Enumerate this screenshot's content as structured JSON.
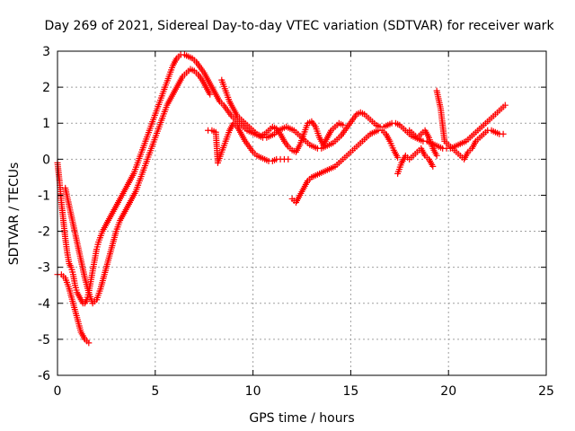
{
  "chart_data": {
    "type": "scatter",
    "title": "Day 269 of 2021, Sidereal Day-to-day VTEC variation (SDTVAR) for receiver wark",
    "xlabel": "GPS time / hours",
    "ylabel": "SDTVAR / TECUs",
    "xlim": [
      0,
      25
    ],
    "ylim": [
      -6,
      3
    ],
    "xticks": [
      0,
      5,
      10,
      15,
      20,
      25
    ],
    "yticks": [
      -6,
      -5,
      -4,
      -3,
      -2,
      -1,
      0,
      1,
      2,
      3
    ],
    "grid": true,
    "legend": "none",
    "marker": "+",
    "color": "#ff0000",
    "series": [
      {
        "x": [
          0.0,
          0.1,
          0.2,
          0.3,
          0.4,
          0.5,
          0.6,
          0.7,
          0.8,
          0.9,
          1.0,
          1.1,
          1.2,
          1.3,
          1.4,
          1.5,
          1.6,
          1.7,
          1.8,
          1.9,
          2.0,
          2.1,
          2.3,
          2.5,
          2.7,
          2.9,
          3.1,
          3.3,
          3.5,
          3.7,
          3.9,
          4.1,
          4.3,
          4.5,
          4.7,
          4.9,
          5.1,
          5.3,
          5.5,
          5.7,
          5.9,
          6.1,
          6.3,
          6.5,
          6.7,
          6.9,
          7.1,
          7.3,
          7.5,
          7.7,
          7.9,
          8.1,
          8.3,
          8.5,
          8.7,
          8.9,
          9.1,
          9.3,
          9.5,
          9.7,
          9.9,
          10.1,
          10.3,
          10.5,
          10.7,
          10.9,
          11.1,
          11.3,
          11.5,
          11.7,
          11.9,
          12.1,
          12.3,
          12.5,
          12.7,
          12.9,
          13.1,
          13.3,
          13.5,
          13.7,
          13.9,
          14.1,
          14.3,
          14.5,
          14.7,
          14.9,
          15.1,
          15.3,
          15.5,
          15.7,
          15.9,
          16.1,
          16.3,
          16.5,
          16.7,
          16.9,
          17.1,
          17.3,
          17.5,
          17.7,
          17.9,
          18.1,
          18.3,
          18.5,
          18.7,
          18.9,
          19.1,
          19.3,
          19.5,
          19.7,
          19.9,
          20.1,
          20.3,
          20.5,
          20.7,
          20.9,
          21.1,
          21.3,
          21.5,
          21.7,
          21.9,
          22.1,
          22.3,
          22.5,
          22.7,
          22.9
        ],
        "y": [
          -0.1,
          -0.6,
          -1.2,
          -1.7,
          -2.2,
          -2.6,
          -2.9,
          -3.0,
          -3.2,
          -3.5,
          -3.7,
          -3.8,
          -3.9,
          -4.0,
          -4.0,
          -3.9,
          -3.7,
          -3.4,
          -3.1,
          -2.8,
          -2.5,
          -2.3,
          -2.0,
          -1.8,
          -1.6,
          -1.4,
          -1.2,
          -1.0,
          -0.8,
          -0.6,
          -0.4,
          -0.1,
          0.2,
          0.5,
          0.8,
          1.1,
          1.4,
          1.7,
          2.0,
          2.3,
          2.6,
          2.8,
          2.9,
          2.9,
          2.85,
          2.8,
          2.7,
          2.55,
          2.4,
          2.2,
          2.0,
          1.8,
          1.6,
          1.5,
          1.35,
          1.2,
          1.1,
          1.0,
          0.9,
          0.8,
          0.75,
          0.7,
          0.65,
          0.6,
          0.6,
          0.65,
          0.7,
          0.8,
          0.85,
          0.9,
          0.85,
          0.8,
          0.7,
          0.6,
          0.5,
          0.4,
          0.35,
          0.3,
          0.3,
          0.35,
          0.4,
          0.45,
          0.55,
          0.65,
          0.8,
          0.95,
          1.1,
          1.25,
          1.3,
          1.25,
          1.15,
          1.05,
          0.95,
          0.9,
          0.9,
          0.95,
          1.0,
          1.0,
          0.95,
          0.85,
          0.75,
          0.65,
          0.6,
          0.55,
          0.5,
          0.5,
          0.45,
          0.4,
          0.35,
          0.3,
          0.3,
          0.3,
          0.35,
          0.4,
          0.45,
          0.5,
          0.6,
          0.7,
          0.8,
          0.9,
          1.0,
          1.1,
          1.2,
          1.3,
          1.4,
          1.5
        ]
      },
      {
        "x": [
          0.0,
          0.2,
          0.4,
          0.6,
          0.8,
          1.0,
          1.2,
          1.4,
          1.6
        ],
        "y": [
          -3.2,
          -3.2,
          -3.3,
          -3.6,
          -4.0,
          -4.4,
          -4.8,
          -5.0,
          -5.1
        ]
      },
      {
        "x": [
          0.4,
          0.6,
          0.8,
          1.0,
          1.2,
          1.4,
          1.6,
          1.8,
          2.0,
          2.2,
          2.4,
          2.6,
          2.8,
          3.0,
          3.2,
          3.4,
          3.6,
          3.8,
          4.0,
          4.2,
          4.4,
          4.6,
          4.8,
          5.0,
          5.2,
          5.4,
          5.6,
          5.8,
          6.0,
          6.2,
          6.4,
          6.6,
          6.8,
          7.0,
          7.2,
          7.4,
          7.6,
          7.8
        ],
        "y": [
          -0.8,
          -1.3,
          -1.8,
          -2.3,
          -2.8,
          -3.3,
          -3.7,
          -4.0,
          -3.9,
          -3.6,
          -3.2,
          -2.8,
          -2.4,
          -2.0,
          -1.7,
          -1.5,
          -1.3,
          -1.1,
          -0.9,
          -0.6,
          -0.3,
          0.0,
          0.3,
          0.6,
          0.9,
          1.2,
          1.5,
          1.7,
          1.9,
          2.1,
          2.3,
          2.4,
          2.5,
          2.45,
          2.35,
          2.2,
          2.0,
          1.8
        ]
      },
      {
        "x": [
          7.7,
          7.9,
          8.1,
          8.2,
          8.4,
          8.6,
          8.8,
          9.0,
          9.2,
          9.4,
          9.6,
          9.8,
          10.0,
          10.2,
          10.4,
          10.6,
          10.8,
          11.0,
          11.2,
          11.4,
          11.6,
          11.8,
          12.0,
          12.2,
          12.4,
          12.6,
          12.8,
          13.0,
          13.2,
          13.4,
          13.6,
          13.8,
          14.0,
          14.2,
          14.4,
          14.6,
          14.8,
          15.0,
          15.2,
          15.4,
          15.6,
          15.8,
          16.0,
          16.2,
          16.4,
          16.6,
          16.8,
          17.0,
          17.2,
          17.4
        ],
        "y": [
          0.8,
          0.8,
          0.75,
          -0.1,
          0.2,
          0.5,
          0.8,
          1.0,
          0.9,
          0.7,
          0.5,
          0.35,
          0.2,
          0.1,
          0.05,
          0.0,
          -0.05,
          -0.05,
          0.0,
          0.0,
          0.0,
          0.0,
          -1.1,
          -1.2,
          -1.0,
          -0.8,
          -0.6,
          -0.5,
          -0.45,
          -0.4,
          -0.35,
          -0.3,
          -0.25,
          -0.2,
          -0.1,
          0.0,
          0.1,
          0.2,
          0.3,
          0.4,
          0.5,
          0.6,
          0.7,
          0.75,
          0.8,
          0.8,
          0.7,
          0.5,
          0.25,
          0.05
        ]
      },
      {
        "x": [
          8.4,
          8.6,
          8.8,
          9.0,
          9.2,
          9.4,
          9.6,
          9.8,
          10.0,
          10.2,
          10.4,
          10.6,
          10.8,
          11.0,
          11.2,
          11.4,
          11.6,
          11.8,
          12.0,
          12.2,
          12.4,
          12.6,
          12.8,
          13.0,
          13.2,
          13.4,
          13.6
        ],
        "y": [
          2.2,
          1.9,
          1.6,
          1.4,
          1.2,
          1.1,
          1.0,
          0.9,
          0.8,
          0.7,
          0.65,
          0.7,
          0.8,
          0.9,
          0.85,
          0.7,
          0.5,
          0.35,
          0.25,
          0.2,
          0.4,
          0.7,
          1.0,
          1.05,
          0.9,
          0.6,
          0.4
        ]
      },
      {
        "x": [
          13.6,
          13.8,
          14.0,
          14.2,
          14.4,
          14.6
        ],
        "y": [
          0.4,
          0.6,
          0.8,
          0.9,
          1.0,
          0.95
        ]
      },
      {
        "x": [
          17.4,
          17.6,
          17.8,
          18.0,
          18.2,
          18.4,
          18.6,
          18.8,
          19.0,
          19.2,
          19.4,
          19.6,
          19.8,
          20.0,
          20.2,
          20.4,
          20.6,
          20.8,
          21.0,
          21.2,
          21.4,
          21.6,
          21.8,
          22.0,
          22.2,
          22.4,
          22.6,
          22.8
        ],
        "y": [
          -0.4,
          -0.1,
          0.1,
          0.0,
          0.1,
          0.2,
          0.3,
          0.1,
          0.0,
          -0.2,
          1.9,
          1.4,
          0.5,
          0.4,
          0.3,
          0.2,
          0.1,
          0.0,
          0.2,
          0.3,
          0.5,
          0.6,
          0.7,
          0.8,
          0.8,
          0.75,
          0.7,
          0.7
        ]
      },
      {
        "x": [
          18.0,
          18.2,
          18.4,
          18.6,
          18.8,
          19.0,
          19.2,
          19.4
        ],
        "y": [
          0.8,
          0.7,
          0.6,
          0.7,
          0.8,
          0.6,
          0.3,
          0.1
        ]
      }
    ]
  }
}
